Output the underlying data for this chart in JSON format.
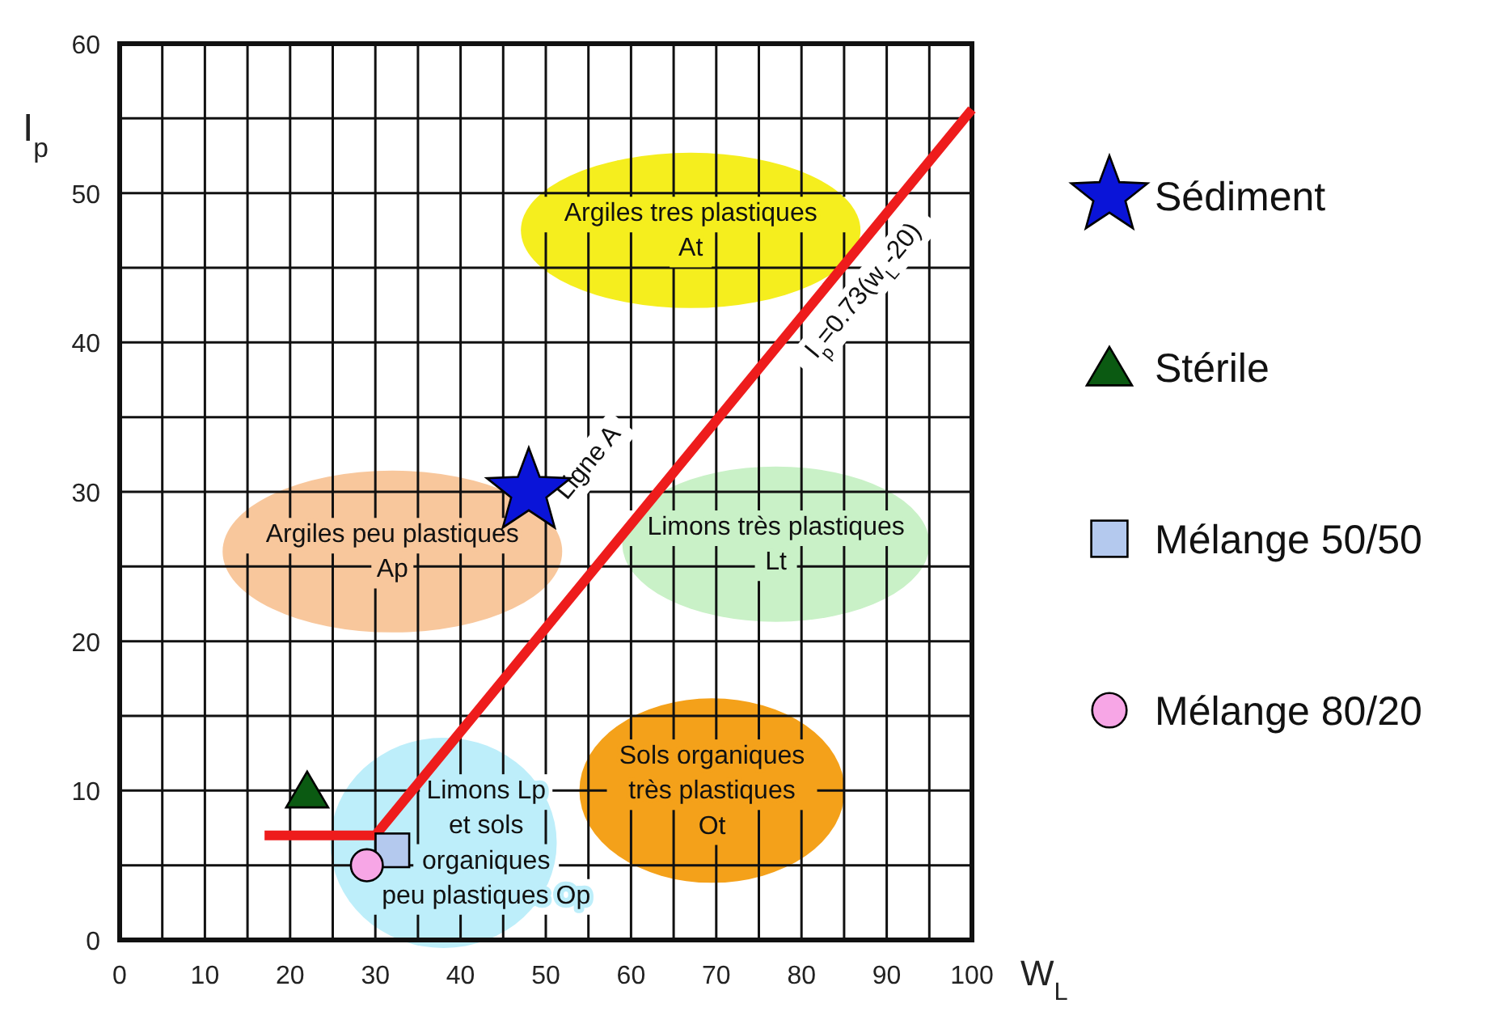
{
  "chart_data": {
    "type": "scatter",
    "xlabel": "W$_{L}$",
    "ylabel": "I$_{p}$",
    "xlim": [
      0,
      100
    ],
    "ylim": [
      0,
      60
    ],
    "xticks": [
      0,
      {
        "value": 5,
        "label": null
      },
      10,
      {
        "value": 15,
        "label": null
      },
      20,
      {
        "value": 25,
        "label": null
      },
      30,
      {
        "value": 35,
        "label": null
      },
      40,
      {
        "value": 45,
        "label": null
      },
      50,
      {
        "value": 55,
        "label": null
      },
      60,
      {
        "value": 65,
        "label": null
      },
      70,
      {
        "value": 75,
        "label": null
      },
      80,
      {
        "value": 85,
        "label": null
      },
      90,
      {
        "value": 95,
        "label": null
      },
      100
    ],
    "yticks": [
      0,
      {
        "value": 5,
        "label": null
      },
      10,
      {
        "value": 15,
        "label": null
      },
      20,
      {
        "value": 25,
        "label": null
      },
      30,
      {
        "value": 35,
        "label": null
      },
      40,
      {
        "value": 45,
        "label": null
      },
      50,
      {
        "value": 55,
        "label": null
      },
      60
    ],
    "grid": true,
    "legend": "right",
    "series": [
      {
        "type": "line",
        "color": "#ee1c1c",
        "x": [
          17,
          30,
          100
        ],
        "values": [
          7,
          7,
          55.6
        ]
      },
      {
        "name": "Sédiment",
        "color": "#0a14d8",
        "marker": "star",
        "x": [
          48
        ],
        "values": [
          30
        ]
      },
      {
        "name": "Stérile",
        "color": "#0b5a12",
        "marker": "triangle",
        "x": [
          22
        ],
        "values": [
          10
        ]
      },
      {
        "name": "Mélange 50/50",
        "color": "#b4c9ee",
        "marker": "square",
        "x": [
          32
        ],
        "values": [
          6
        ]
      },
      {
        "name": "Mélange 80/20",
        "color": "#f7a6e6",
        "marker": "circle",
        "x": [
          29
        ],
        "values": [
          5
        ]
      }
    ],
    "annotations": [
      "Argiles tres plastiques\nAt",
      "Argiles peu plastiques\nAp",
      "Limons très plastiques\nLt",
      "Sols organiques\ntrès plastiques\nOt",
      "Limons Lp\net sols\norganiques\npeu plastiques Op",
      "Ligne A",
      "I$_{p}$=0.73(w$_{L}$-20)"
    ]
  }
}
